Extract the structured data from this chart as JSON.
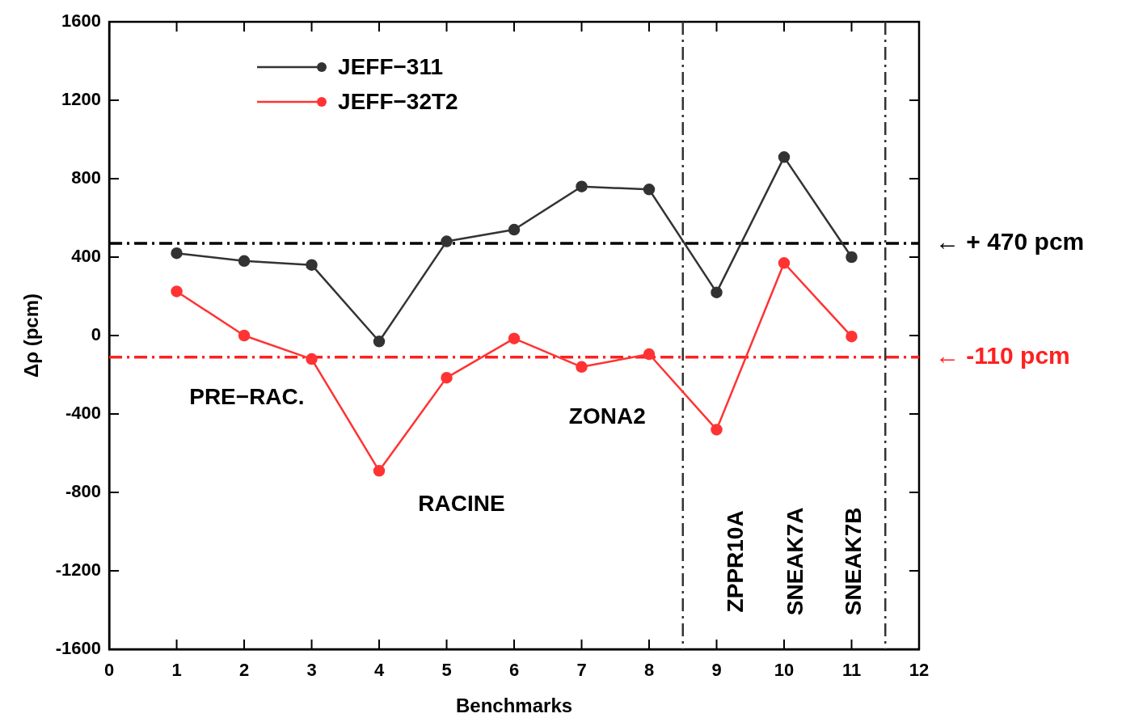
{
  "chart_data": {
    "type": "line",
    "xlabel": "Benchmarks",
    "ylabel": "Δρ (pcm)",
    "x": [
      1,
      2,
      3,
      4,
      5,
      6,
      7,
      8,
      9,
      10,
      11
    ],
    "series": [
      {
        "name": "JEFF−311",
        "color": "#333333",
        "values": [
          420,
          380,
          360,
          -30,
          480,
          540,
          760,
          745,
          220,
          910,
          400
        ]
      },
      {
        "name": "JEFF−32T2",
        "color": "#ff3333",
        "values": [
          225,
          0,
          -120,
          -690,
          -215,
          -15,
          -160,
          -95,
          -480,
          370,
          -5
        ]
      }
    ],
    "xlim": [
      0,
      12
    ],
    "xticks": [
      0,
      1,
      2,
      3,
      4,
      5,
      6,
      7,
      8,
      9,
      10,
      11,
      12
    ],
    "ylim": [
      -1600,
      1600
    ],
    "yticks": [
      -1600,
      -1200,
      -800,
      -400,
      0,
      400,
      800,
      1200,
      1600
    ],
    "ref_lines": [
      {
        "axis": "y",
        "value": 470,
        "label": "← + 470 pcm",
        "color": "#000000",
        "line_style": "dashdot"
      },
      {
        "axis": "y",
        "value": -110,
        "label": "← -110 pcm",
        "color": "#ff2020",
        "line_style": "dashdot"
      },
      {
        "axis": "x",
        "value": 8.5,
        "color": "#333333",
        "line_style": "dashdot"
      },
      {
        "axis": "x",
        "value": 11.5,
        "color": "#333333",
        "line_style": "dashdot"
      }
    ],
    "annotations": [
      "PRE−RAC.",
      "RACINE",
      "ZONA2",
      "ZPPR10A",
      "SNEAK7A",
      "SNEAK7B"
    ],
    "grid": false,
    "legend": "top left",
    "marker": "circle",
    "line_style": "solid"
  }
}
